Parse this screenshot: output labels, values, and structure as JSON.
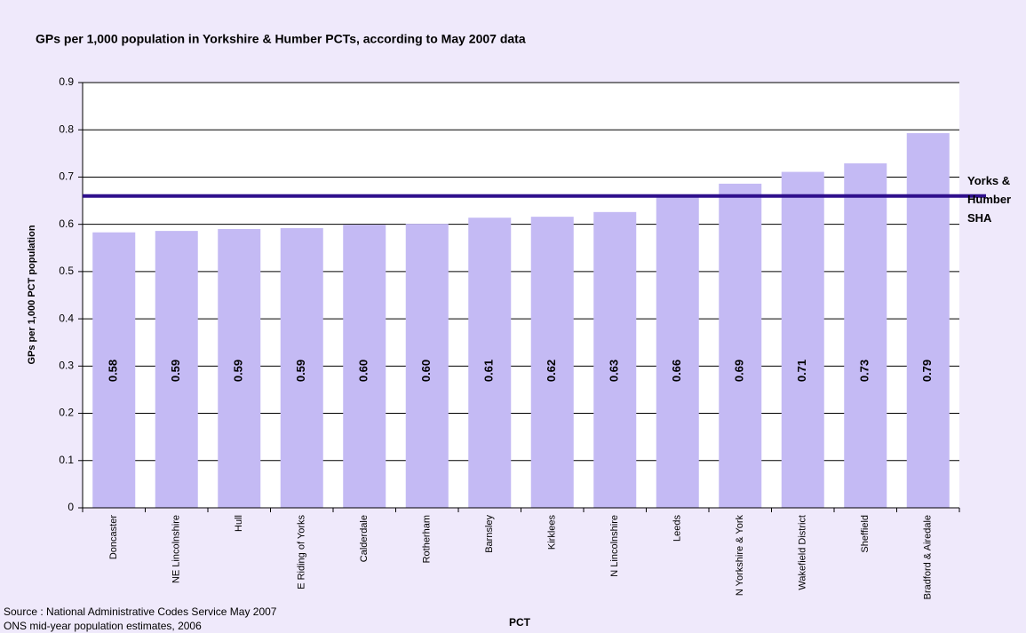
{
  "chart_data": {
    "type": "bar",
    "title": "GPs per 1,000 population in Yorkshire & Humber PCTs, according to May 2007 data",
    "x_label": "PCT",
    "y_label": "GPs per 1,000 PCT population",
    "categories": [
      "Doncaster",
      "NE Lincolnshire",
      "Hull",
      "E Riding of Yorks",
      "Calderdale",
      "Rotherham",
      "Barnsley",
      "Kirklees",
      "N Lincolnshire",
      "Leeds",
      "N Yorkshire & York",
      "Wakefield District",
      "Sheffield",
      "Bradford & Airedale"
    ],
    "values": [
      0.583,
      0.586,
      0.59,
      0.592,
      0.599,
      0.601,
      0.614,
      0.616,
      0.626,
      0.66,
      0.686,
      0.711,
      0.729,
      0.793
    ],
    "value_labels": [
      "0.58",
      "0.59",
      "0.59",
      "0.59",
      "0.60",
      "0.60",
      "0.61",
      "0.62",
      "0.63",
      "0.66",
      "0.69",
      "0.71",
      "0.73",
      "0.79"
    ],
    "color": "#c4baf4",
    "ylim": [
      0,
      0.9
    ],
    "yticks": [
      0,
      0.1,
      0.2,
      0.3,
      0.4,
      0.5,
      0.6,
      0.7,
      0.8,
      0.9
    ],
    "grid": true,
    "reference_line": {
      "value": 0.66,
      "color": "#2f0f8c",
      "label": [
        "Yorks &",
        "Humber",
        "SHA"
      ]
    },
    "source": [
      "Source :  National Administrative Codes Service May 2007",
      "ONS mid-year population estimates, 2006"
    ]
  }
}
